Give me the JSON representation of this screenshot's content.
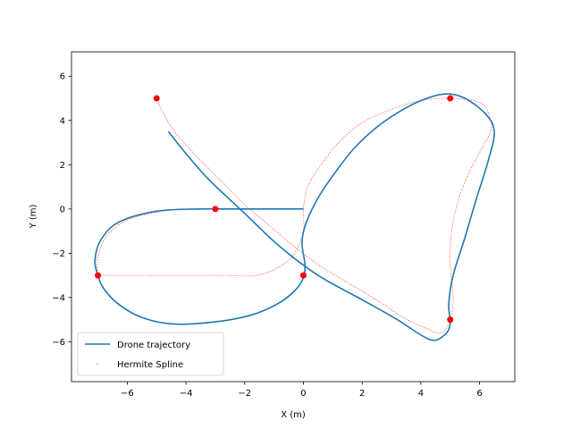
{
  "chart_data": {
    "type": "line",
    "title": "",
    "xlabel": "X (m)",
    "ylabel": "Y (m)",
    "xlim": [
      -7.9,
      7.2
    ],
    "ylim": [
      -7.8,
      7.1
    ],
    "xticks": [
      -6,
      -4,
      -2,
      0,
      2,
      4,
      6
    ],
    "yticks": [
      -6,
      -4,
      -2,
      0,
      2,
      4,
      6
    ],
    "legend_position": "lower-left",
    "series": [
      {
        "name": "Drone trajectory",
        "style": "solid-line",
        "color": "#1f77b4",
        "x": [
          0,
          -1.5,
          -2.6,
          -3.5,
          -5.0,
          -6.3,
          -6.9,
          -7.1,
          -7.0,
          -6.8,
          -6.3,
          -5.5,
          -4.4,
          -3.0,
          -1.8,
          -0.9,
          -0.3,
          0.0,
          0.05,
          -0.05,
          0.1,
          0.5,
          1.0,
          1.7,
          2.5,
          3.4,
          4.2,
          4.9,
          5.5,
          6.2,
          6.5,
          6.3,
          5.9,
          5.5,
          5.1,
          4.95,
          5.0,
          4.8,
          4.3,
          3.2,
          2.0,
          0.5,
          -0.8,
          -2.0,
          -3.2,
          -4.0,
          -4.6
        ],
        "y": [
          0,
          0,
          0,
          0,
          -0.1,
          -0.6,
          -1.4,
          -2.3,
          -3.0,
          -3.6,
          -4.3,
          -4.9,
          -5.2,
          -5.1,
          -4.8,
          -4.3,
          -3.7,
          -3.1,
          -2.5,
          -1.5,
          -0.6,
          0.5,
          1.5,
          2.7,
          3.7,
          4.5,
          5.0,
          5.2,
          5.0,
          4.3,
          3.5,
          2.2,
          0.5,
          -1.3,
          -3.0,
          -4.3,
          -5.2,
          -5.7,
          -5.9,
          -5.0,
          -4.1,
          -3.0,
          -1.7,
          -0.2,
          1.3,
          2.5,
          3.5
        ]
      },
      {
        "name": "Hermite Spline",
        "style": "dotted",
        "color": "#ff0000",
        "x": [
          -5,
          -4.8,
          -4.4,
          -3.8,
          -3.2,
          -2.6,
          -2.0,
          -1.2,
          -0.4,
          0.6,
          1.6,
          2.6,
          3.4,
          4.2,
          4.7,
          5.0,
          5.1,
          5.0,
          5.05,
          5.3,
          5.7,
          6.1,
          6.35,
          6.4,
          6.2,
          5.8,
          5.0,
          4.0,
          3.0,
          2.0,
          1.2,
          0.6,
          0.15,
          0.0,
          0.0,
          -0.3,
          -0.8,
          -1.6,
          -2.6,
          -3.6,
          -4.6,
          -5.6,
          -6.4,
          -6.9,
          -7.0,
          -7.0,
          -6.7,
          -6.0,
          -5.0,
          -4.0,
          -3.0
        ],
        "y": [
          5.0,
          4.4,
          3.5,
          2.6,
          1.8,
          1.0,
          0.2,
          -0.7,
          -1.6,
          -2.6,
          -3.4,
          -4.2,
          -4.9,
          -5.4,
          -5.6,
          -5.0,
          -4.0,
          -2.5,
          -1.0,
          0.5,
          1.8,
          2.8,
          3.4,
          3.9,
          4.6,
          4.9,
          5.0,
          4.9,
          4.5,
          3.9,
          3.0,
          2.0,
          1.0,
          0.0,
          -1.0,
          -2.0,
          -2.6,
          -3.0,
          -3.0,
          -3.0,
          -3.0,
          -3.0,
          -3.0,
          -3.0,
          -3.0,
          -2.2,
          -1.2,
          -0.5,
          -0.15,
          0.0,
          0.0
        ]
      }
    ],
    "waypoints": {
      "color": "#ff0000",
      "x": [
        -5,
        -3,
        -7,
        0,
        5,
        5
      ],
      "y": [
        5,
        0,
        -3,
        -3,
        5,
        -5
      ]
    }
  }
}
